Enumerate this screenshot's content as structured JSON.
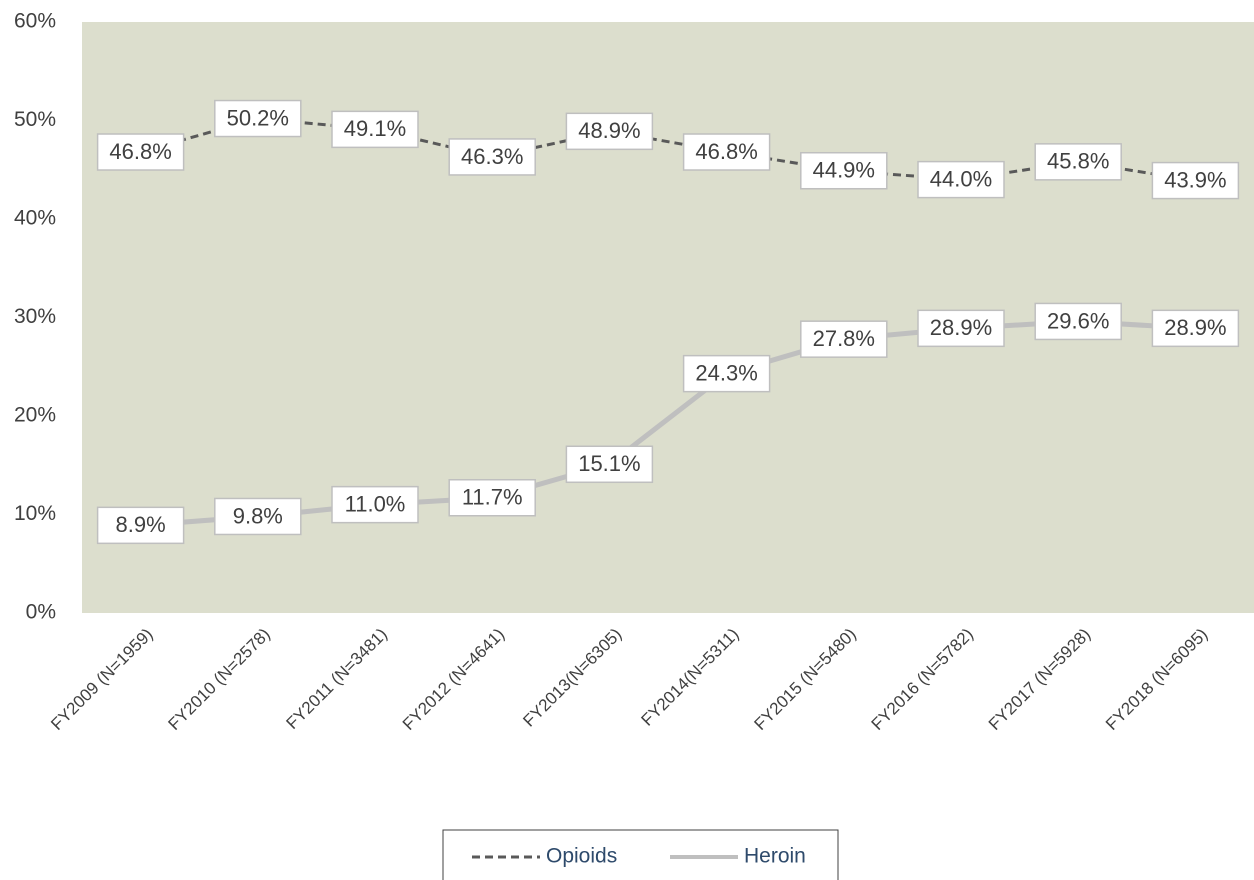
{
  "chart_data": {
    "type": "line",
    "categories": [
      "FY2009 (N=1959)",
      "FY2010 (N=2578)",
      "FY2011 (N=3481)",
      "FY2012 (N=4641)",
      "FY2013(N=6305)",
      "FY2014(N=5311)",
      "FY2015 (N=5480)",
      "FY2016 (N=5782)",
      "FY2017 (N=5928)",
      "FY2018 (N=6095)"
    ],
    "series": [
      {
        "name": "Opioids",
        "color": "#595959",
        "dashed": true,
        "values": [
          46.8,
          50.2,
          49.1,
          46.3,
          48.9,
          46.8,
          44.9,
          44.0,
          45.8,
          43.9
        ],
        "value_labels": [
          "46.8%",
          "50.2%",
          "49.1%",
          "46.3%",
          "48.9%",
          "46.8%",
          "44.9%",
          "44.0%",
          "45.8%",
          "43.9%"
        ]
      },
      {
        "name": "Heroin",
        "color": "#bfbfbf",
        "dashed": false,
        "values": [
          8.9,
          9.8,
          11.0,
          11.7,
          15.1,
          24.3,
          27.8,
          28.9,
          29.6,
          28.9
        ],
        "value_labels": [
          "8.9%",
          "9.8%",
          "11.0%",
          "11.7%",
          "15.1%",
          "24.3%",
          "27.8%",
          "28.9%",
          "29.6%",
          "28.9%"
        ]
      }
    ],
    "ylim": [
      0,
      60
    ],
    "yticks": [
      {
        "value": 0,
        "label": "0%"
      },
      {
        "value": 10,
        "label": "10%"
      },
      {
        "value": 20,
        "label": "20%"
      },
      {
        "value": 30,
        "label": "30%"
      },
      {
        "value": 40,
        "label": "40%"
      },
      {
        "value": 50,
        "label": "50%"
      },
      {
        "value": 60,
        "label": "60%"
      }
    ],
    "legend": "bottom"
  }
}
